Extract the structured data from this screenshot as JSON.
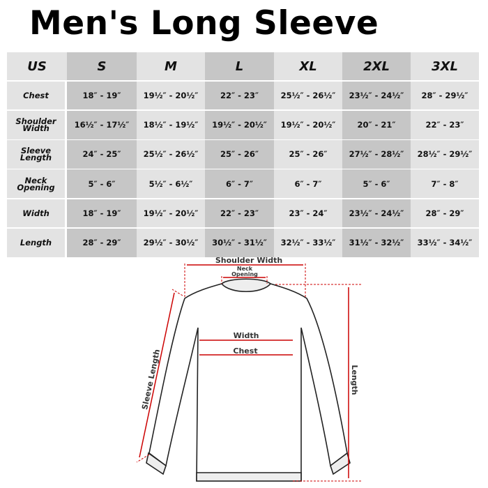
{
  "title": "Men's Long Sleeve",
  "table": {
    "headers": [
      "US",
      "S",
      "M",
      "L",
      "XL",
      "2XL",
      "3XL"
    ],
    "rows": [
      {
        "label": "Chest",
        "values": [
          "18″ - 19″",
          "19½″ - 20½″",
          "22″ - 23″",
          "25½″ - 26½″",
          "23½″ - 24½″",
          "28″ - 29½″"
        ]
      },
      {
        "label": "Shoulder Width",
        "values": [
          "16½″ - 17½″",
          "18½″ - 19½″",
          "19½″ - 20½″",
          "19½″ - 20½″",
          "20″ - 21″",
          "22″ - 23″"
        ]
      },
      {
        "label": "Sleeve Length",
        "values": [
          "24″ - 25″",
          "25½″ - 26½″",
          "25″ - 26″",
          "25″ - 26″",
          "27½″ - 28½″",
          "28½″ - 29½″"
        ]
      },
      {
        "label": "Neck Opening",
        "values": [
          "5″ - 6″",
          "5½″ - 6½″",
          "6″ - 7″",
          "6″ - 7″",
          "5″ - 6″",
          "7″ - 8″"
        ]
      },
      {
        "label": "Width",
        "values": [
          "18″ - 19″",
          "19½″ - 20½″",
          "22″ - 23″",
          "23″ - 24″",
          "23½″ - 24½″",
          "28″ - 29″"
        ]
      },
      {
        "label": "Length",
        "values": [
          "28″ - 29″",
          "29½″ - 30½″",
          "30½″ - 31½″",
          "32½″ - 33½″",
          "31½″ - 32½″",
          "33½″ - 34½″"
        ]
      }
    ]
  },
  "diagram": {
    "shoulder_width": "Shoulder Width",
    "neck_opening_1": "Neck",
    "neck_opening_2": "Opening",
    "width": "Width",
    "chest": "Chest",
    "sleeve_length": "Sleeve Length",
    "length": "Length",
    "measure_color": "#cc0000"
  }
}
